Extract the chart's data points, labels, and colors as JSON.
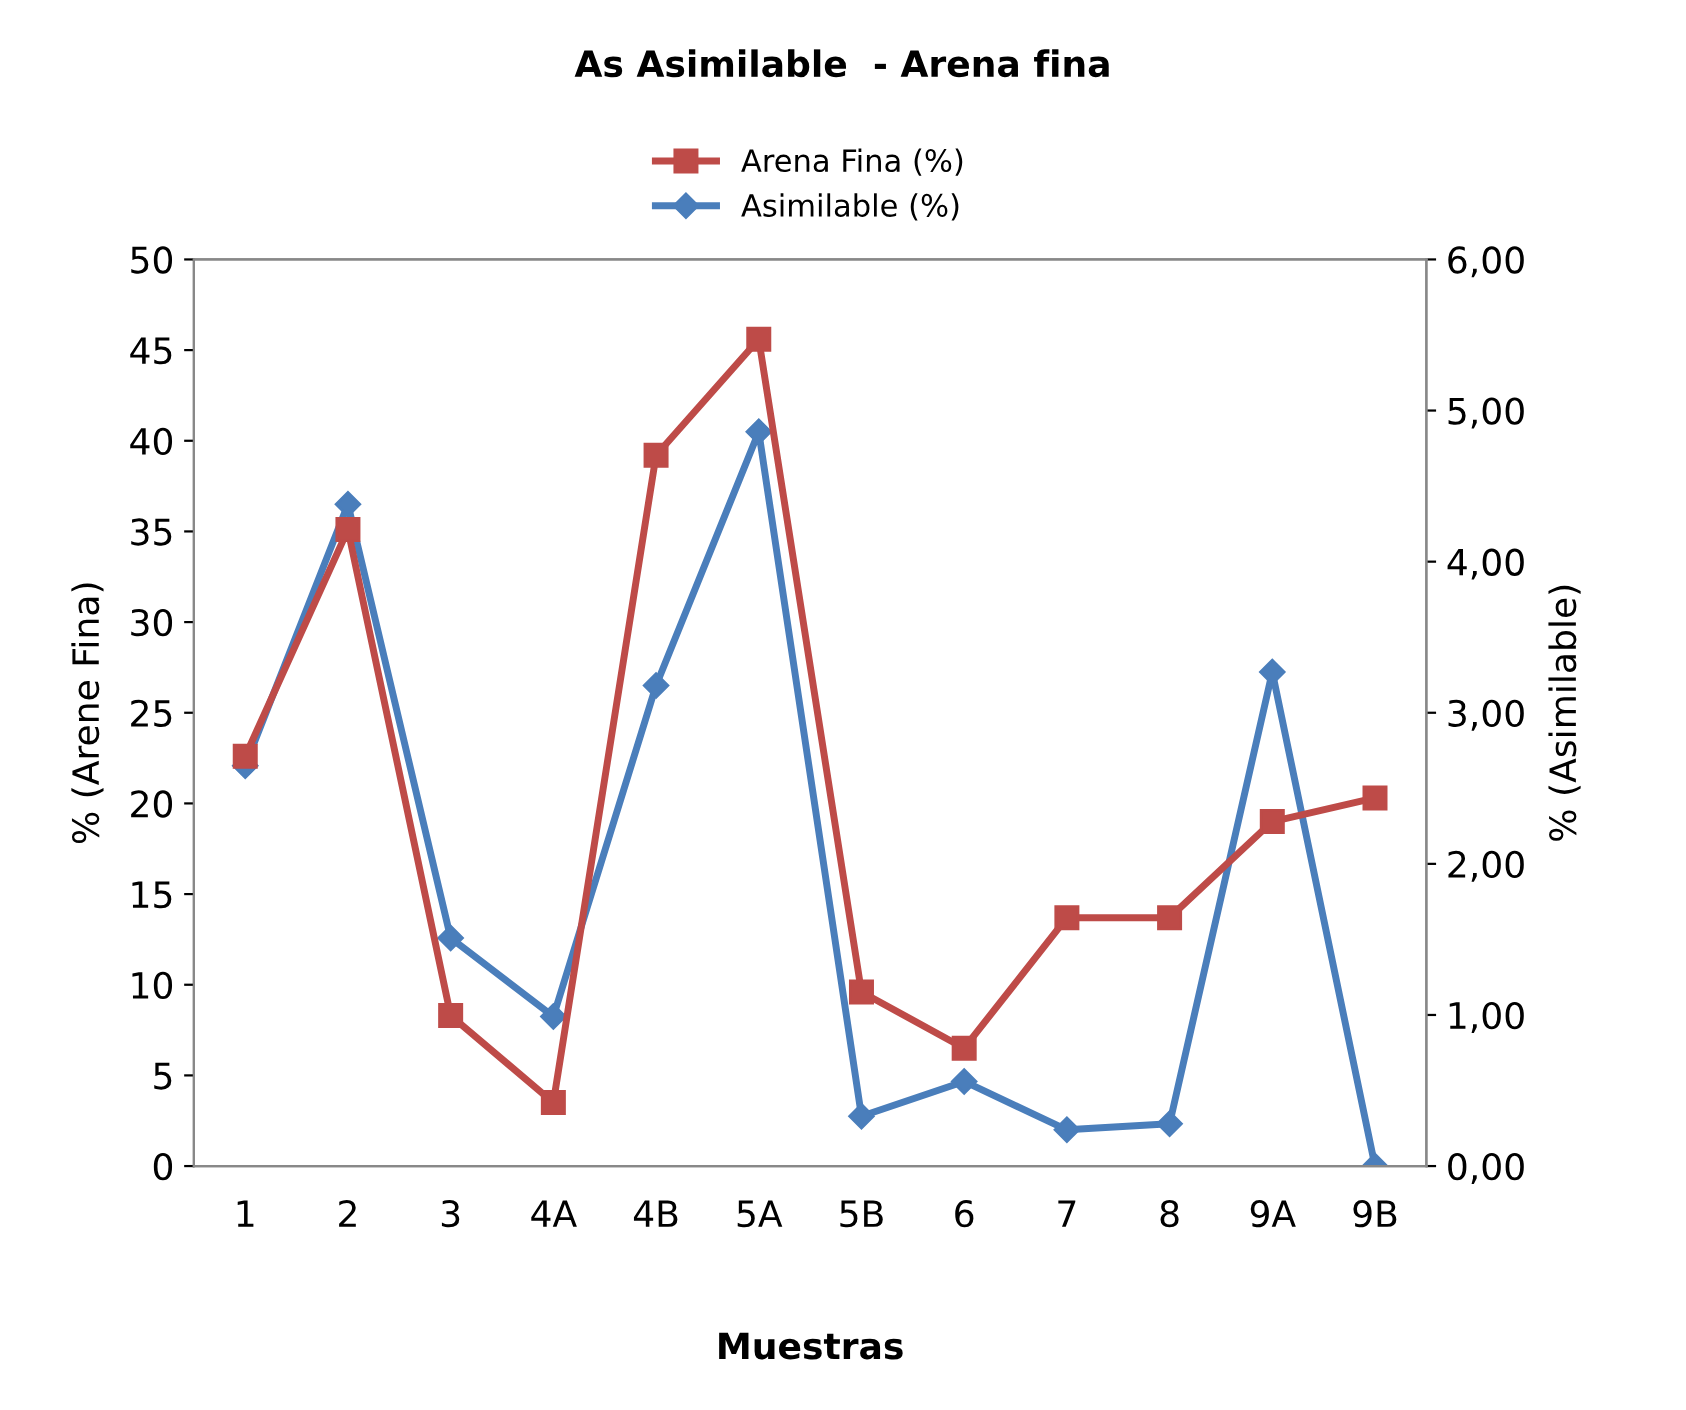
{
  "chart_data": {
    "type": "line",
    "title": "As Asimilable  - Arena fina",
    "xlabel": "Muestras",
    "ylabel": "% (Arene Fina)",
    "y2label": "% (Asimilable)",
    "categories": [
      "1",
      "2",
      "3",
      "4A",
      "4B",
      "5A",
      "5B",
      "6",
      "7",
      "8",
      "9A",
      "9B"
    ],
    "series": [
      {
        "name": "Arena Fina (%)",
        "color": "#be4b48",
        "marker": "square",
        "values": [
          22.6,
          35.1,
          8.3,
          3.5,
          39.2,
          45.6,
          9.6,
          6.5,
          13.7,
          13.7,
          19.0,
          20.3
        ]
      },
      {
        "name": "Asimilable (%)",
        "color": "#4a7ebb",
        "marker": "diamond",
        "axis": "y2",
        "values": [
          2.65,
          4.38,
          1.51,
          0.99,
          3.18,
          4.86,
          0.33,
          0.56,
          0.24,
          0.28,
          3.27,
          0.0
        ]
      }
    ],
    "ylim": [
      0,
      50
    ],
    "yticks": [
      0,
      5,
      10,
      15,
      20,
      25,
      30,
      35,
      40,
      45,
      50
    ],
    "y2lim": [
      0,
      6
    ],
    "y2ticks": [
      {
        "value": 0,
        "label": "0,00"
      },
      {
        "value": 1,
        "label": "1,00"
      },
      {
        "value": 2,
        "label": "2,00"
      },
      {
        "value": 3,
        "label": "3,00"
      },
      {
        "value": 4,
        "label": "4,00"
      },
      {
        "value": 5,
        "label": "5,00"
      },
      {
        "value": 6,
        "label": "6,00"
      }
    ],
    "legend": "top",
    "grid": false,
    "line_style": "solid"
  }
}
